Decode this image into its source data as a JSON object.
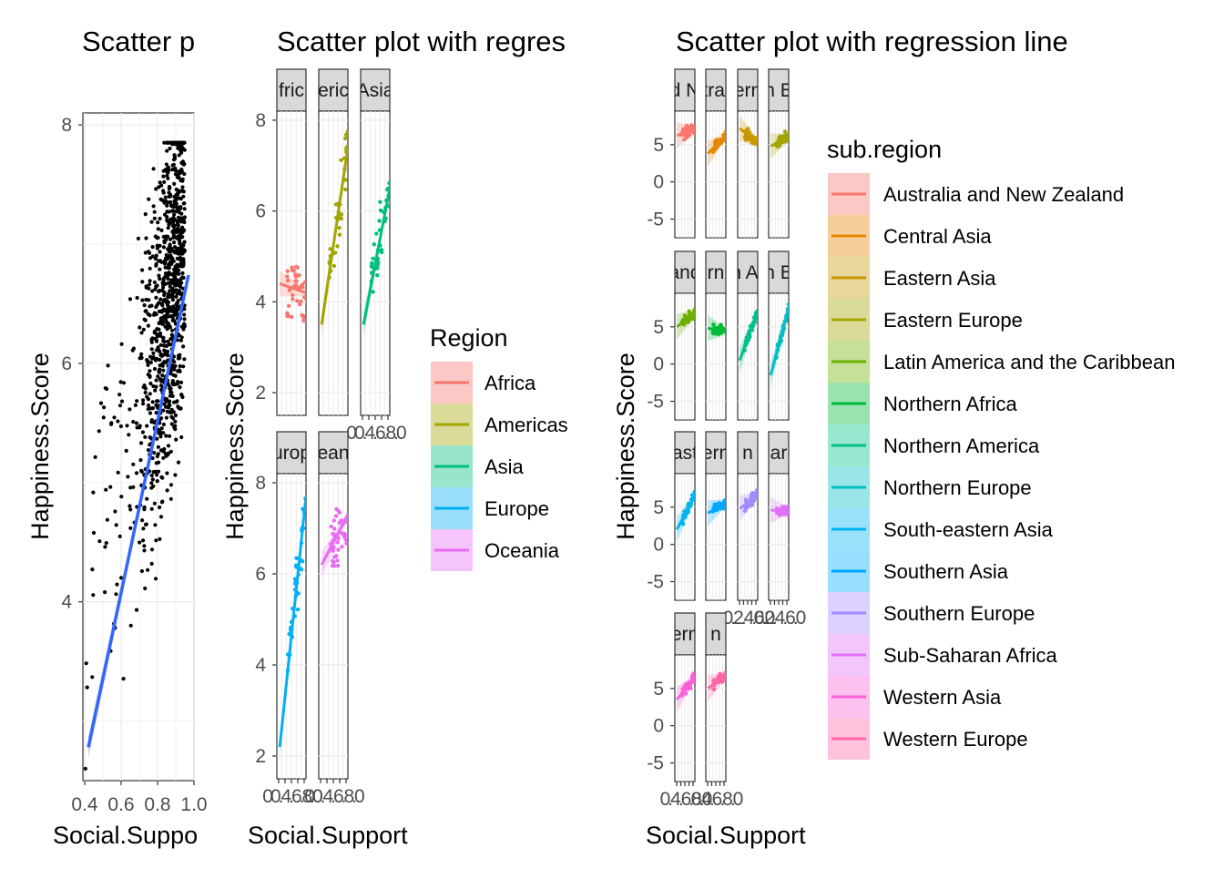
{
  "palette": {
    "Africa": "#F8766D",
    "Americas": "#A3A500",
    "Asia": "#00BF7D",
    "Europe": "#00B0F6",
    "Oceania": "#E76BF3",
    "Australia and New Zealand": "#F8766D",
    "Central Asia": "#E58700",
    "Eastern Asia": "#C99800",
    "Eastern Europe": "#A3A500",
    "Latin America and the Caribbean": "#6BB100",
    "Northern Africa": "#00BA38",
    "Northern America": "#00C08B",
    "Northern Europe": "#00BFC4",
    "South-eastern Asia": "#00B4F0",
    "Southern Asia": "#00A9FF",
    "Southern Europe": "#A58AFF",
    "Sub-Saharan Africa": "#DF70F8",
    "Western Asia": "#FB61D7",
    "Western Europe": "#FF66A8",
    "regression_line": "#3366FF",
    "points": "#000000"
  },
  "chart_data": [
    {
      "type": "scatter",
      "title": "Scatter p",
      "xlabel": "Social.Suppo",
      "ylabel": "Happiness.Score",
      "x_ticks": [
        "0.4",
        "0.6",
        "0.8",
        "1.0"
      ],
      "y_ticks": [
        "4",
        "6",
        "8"
      ],
      "xlim": [
        0.39,
        1.0
      ],
      "ylim": [
        2.5,
        8.1
      ],
      "grid": true,
      "points_description": "about 1000 black points rising from lower-left to upper-right, concentrated between Social.Support 0.7 and 0.95",
      "regression_line": {
        "x": [
          0.42,
          0.97
        ],
        "y": [
          2.78,
          6.74
        ]
      }
    },
    {
      "type": "scatter",
      "title": "Scatter plot with regres",
      "xlabel": "Social.Support",
      "ylabel": "Happiness.Score",
      "facet_by": "Region",
      "y_ticks": [
        "2",
        "4",
        "6",
        "8"
      ],
      "x_tick_text": "00.4.6.8.0",
      "ylim": [
        1.5,
        8.2
      ],
      "grid": true,
      "legend": {
        "title": "Region",
        "placement": "right"
      },
      "panels": [
        {
          "strip": "fric",
          "group": "Africa",
          "fit": {
            "x": [
              0.1,
              1.0
            ],
            "y": [
              4.4,
              4.2
            ]
          }
        },
        {
          "strip": "eric",
          "group": "Americas",
          "fit": {
            "x": [
              0.1,
              1.0
            ],
            "y": [
              3.5,
              7.4
            ]
          }
        },
        {
          "strip": "Asia",
          "group": "Asia",
          "fit": {
            "x": [
              0.1,
              1.0
            ],
            "y": [
              3.5,
              6.5
            ]
          }
        },
        {
          "strip": "urop",
          "group": "Europe",
          "fit": {
            "x": [
              0.1,
              1.0
            ],
            "y": [
              2.2,
              7.7
            ]
          }
        },
        {
          "strip": "ean",
          "group": "Oceania",
          "fit": {
            "x": [
              0.1,
              1.0
            ],
            "y": [
              6.2,
              7.3
            ]
          }
        }
      ]
    },
    {
      "type": "scatter",
      "title": "Scatter plot with regression line",
      "xlabel": "Social.Support",
      "ylabel": "Happiness.Score",
      "facet_by": "sub.region",
      "y_ticks": [
        "-5",
        "0",
        "5"
      ],
      "x_tick_text": [
        "0.4.6.8.0",
        "0.4.6.8.0",
        "0.2.4.6.0",
        "0.2.4.6.0"
      ],
      "ylim": [
        -7.5,
        9.5
      ],
      "grid": true,
      "legend": {
        "title": "sub.region",
        "placement": "right"
      },
      "panels": [
        {
          "strip": "d N",
          "group": "Australia and New Zealand",
          "fit": {
            "x": [
              0.1,
              1.0
            ],
            "y": [
              6.2,
              7.2
            ]
          }
        },
        {
          "strip": "tral",
          "group": "Central Asia",
          "fit": {
            "x": [
              0.1,
              1.0
            ],
            "y": [
              3.8,
              6.2
            ]
          }
        },
        {
          "strip": "ern",
          "group": "Eastern Asia",
          "fit": {
            "x": [
              0.1,
              1.0
            ],
            "y": [
              7.2,
              5.2
            ]
          }
        },
        {
          "strip": "n E",
          "group": "Eastern Europe",
          "fit": {
            "x": [
              0.1,
              1.0
            ],
            "y": [
              4.8,
              6.0
            ]
          }
        },
        {
          "strip": "and",
          "group": "Latin America and the Caribbean",
          "fit": {
            "x": [
              0.1,
              1.0
            ],
            "y": [
              5.0,
              6.8
            ]
          }
        },
        {
          "strip": "rn",
          "group": "Northern Africa",
          "fit": {
            "x": [
              0.1,
              1.0
            ],
            "y": [
              4.8,
              4.4
            ]
          }
        },
        {
          "strip": "n Ar",
          "group": "Northern America",
          "fit": {
            "x": [
              0.1,
              1.0
            ],
            "y": [
              0.5,
              7.2
            ]
          }
        },
        {
          "strip": "n E",
          "group": "Northern Europe",
          "fit": {
            "x": [
              0.1,
              1.0
            ],
            "y": [
              -1.5,
              7.5
            ]
          }
        },
        {
          "strip": "ast",
          "group": "South-eastern Asia",
          "fit": {
            "x": [
              0.1,
              1.0
            ],
            "y": [
              2.0,
              6.5
            ]
          }
        },
        {
          "strip": "ern",
          "group": "Southern Asia",
          "fit": {
            "x": [
              0.1,
              1.0
            ],
            "y": [
              4.2,
              5.6
            ]
          }
        },
        {
          "strip": "n",
          "group": "Southern Europe",
          "fit": {
            "x": [
              0.1,
              1.0
            ],
            "y": [
              4.8,
              6.6
            ]
          }
        },
        {
          "strip": "ar",
          "group": "Sub-Saharan Africa",
          "fit": {
            "x": [
              0.1,
              1.0
            ],
            "y": [
              4.6,
              4.5
            ]
          }
        },
        {
          "strip": "ern",
          "group": "Western Asia",
          "fit": {
            "x": [
              0.1,
              1.0
            ],
            "y": [
              3.5,
              6.5
            ]
          }
        },
        {
          "strip": "n",
          "group": "Western Europe",
          "fit": {
            "x": [
              0.1,
              1.0
            ],
            "y": [
              5.0,
              6.8
            ]
          }
        }
      ]
    }
  ],
  "legend_region": {
    "title": "Region",
    "items": [
      "Africa",
      "Americas",
      "Asia",
      "Europe",
      "Oceania"
    ]
  },
  "legend_subregion": {
    "title": "sub.region",
    "items": [
      "Australia and New Zealand",
      "Central Asia",
      "Eastern Asia",
      "Eastern Europe",
      "Latin America and the Caribbean",
      "Northern Africa",
      "Northern America",
      "Northern Europe",
      "South-eastern Asia",
      "Southern Asia",
      "Southern Europe",
      "Sub-Saharan Africa",
      "Western Asia",
      "Western Europe"
    ]
  }
}
